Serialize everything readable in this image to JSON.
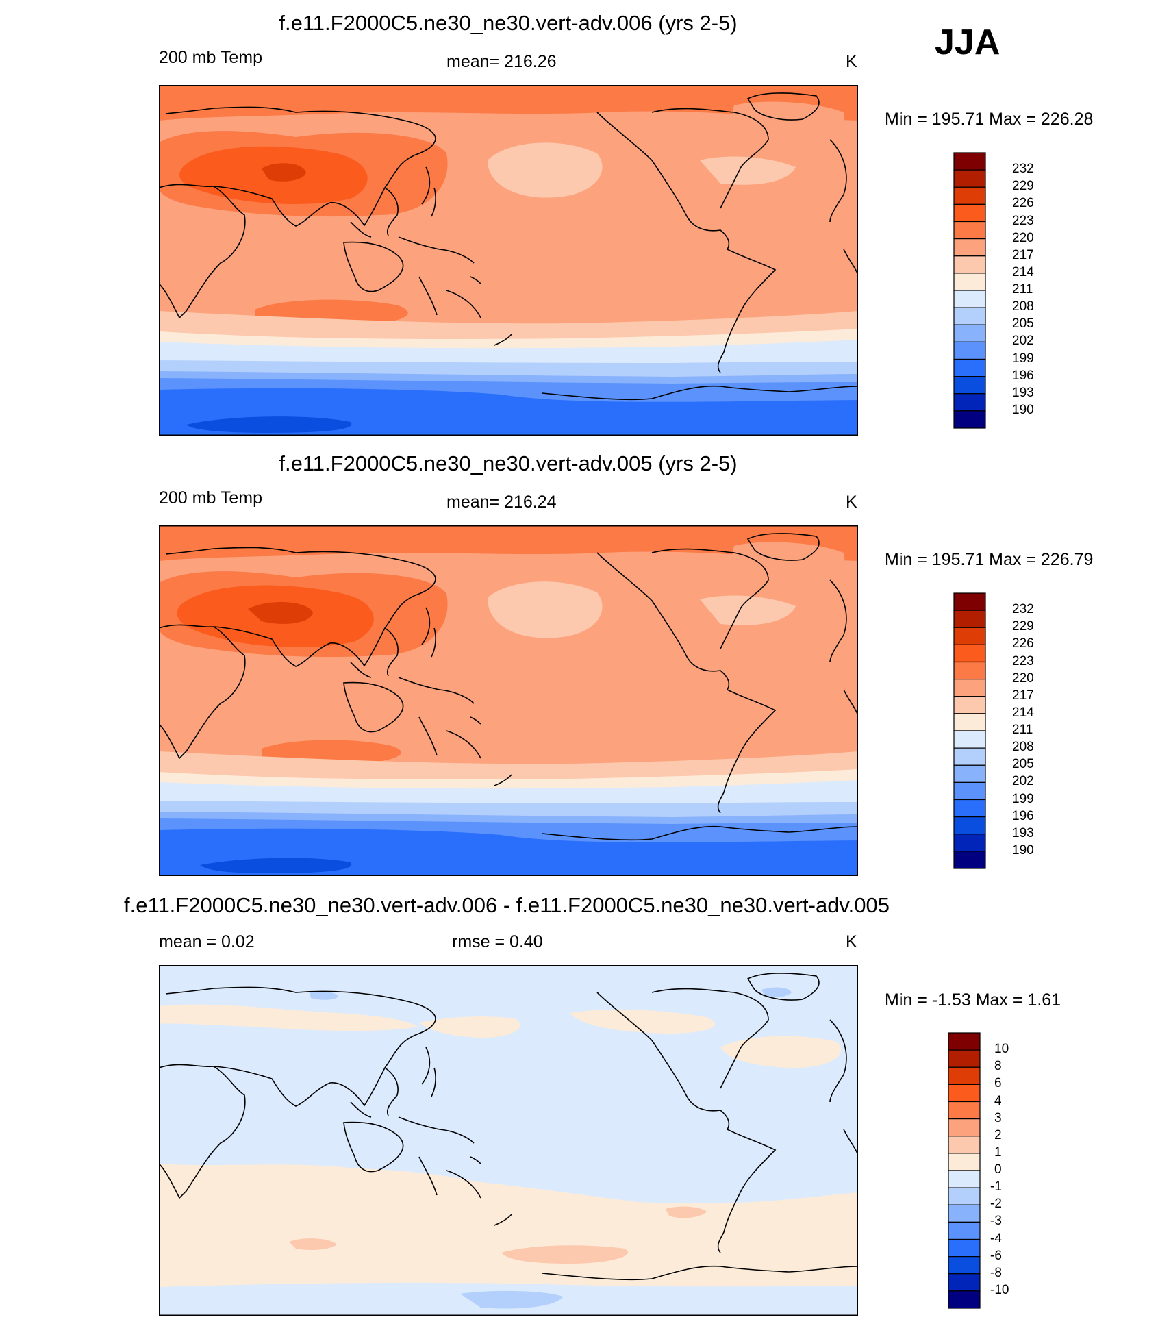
{
  "season": "JJA",
  "panels": [
    {
      "title": "f.e11.F2000C5.ne30_ne30.vert-adv.006 (yrs 2-5)",
      "left_label": "200 mb Temp",
      "center_label": "mean= 216.26",
      "right_label": "K",
      "minmax": "Min = 195.71 Max = 226.28",
      "colorbar": {
        "labels": [
          "232",
          "229",
          "226",
          "223",
          "220",
          "217",
          "214",
          "211",
          "208",
          "205",
          "202",
          "199",
          "196",
          "193",
          "190"
        ],
        "colors": [
          "#7e0000",
          "#b11f00",
          "#de3e05",
          "#fb5b1c",
          "#fb7a45",
          "#fca37e",
          "#fcc9ae",
          "#fdebd9",
          "#dbeafc",
          "#b3d0fc",
          "#89b2fc",
          "#5b92fc",
          "#2a6ffb",
          "#0a4ee0",
          "#0025b8",
          "#000080"
        ]
      }
    },
    {
      "title": "f.e11.F2000C5.ne30_ne30.vert-adv.005 (yrs 2-5)",
      "left_label": "200 mb Temp",
      "center_label": "mean= 216.24",
      "right_label": "K",
      "minmax": "Min = 195.71 Max = 226.79",
      "colorbar": {
        "labels": [
          "232",
          "229",
          "226",
          "223",
          "220",
          "217",
          "214",
          "211",
          "208",
          "205",
          "202",
          "199",
          "196",
          "193",
          "190"
        ],
        "colors": [
          "#7e0000",
          "#b11f00",
          "#de3e05",
          "#fb5b1c",
          "#fb7a45",
          "#fca37e",
          "#fcc9ae",
          "#fdebd9",
          "#dbeafc",
          "#b3d0fc",
          "#89b2fc",
          "#5b92fc",
          "#2a6ffb",
          "#0a4ee0",
          "#0025b8",
          "#000080"
        ]
      }
    },
    {
      "title": "f.e11.F2000C5.ne30_ne30.vert-adv.006 - f.e11.F2000C5.ne30_ne30.vert-adv.005",
      "left_label": "mean =   0.02",
      "center_label": "rmse =   0.40",
      "right_label": "K",
      "minmax": "Min =  -1.53 Max =   1.61",
      "colorbar": {
        "labels": [
          "10",
          "8",
          "6",
          "4",
          "3",
          "2",
          "1",
          "0",
          "-1",
          "-2",
          "-3",
          "-4",
          "-6",
          "-8",
          "-10"
        ],
        "colors": [
          "#7e0000",
          "#b11f00",
          "#de3e05",
          "#fb5b1c",
          "#fb7a45",
          "#fca37e",
          "#fcc9ae",
          "#fdebd9",
          "#dbeafc",
          "#b3d0fc",
          "#89b2fc",
          "#5b92fc",
          "#2a6ffb",
          "#0a4ee0",
          "#0025b8",
          "#000080"
        ]
      }
    }
  ]
}
